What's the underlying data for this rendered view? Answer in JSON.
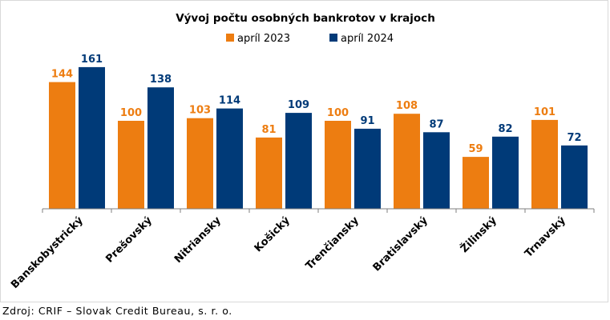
{
  "chart_data": {
    "type": "bar",
    "title": "Vývoj počtu osobných bankrotov v krajoch",
    "xlabel": "",
    "ylabel": "",
    "ylim": [
      0,
      175
    ],
    "grid": false,
    "legend_position": "top-center",
    "categories": [
      "Banskobystrický",
      "Prešovský",
      "Nitriansky",
      "Košický",
      "Trenčiansky",
      "Bratislavský",
      "Žilinský",
      "Trnavský"
    ],
    "series": [
      {
        "name": "apríl 2023",
        "color": "#ED7D11",
        "values": [
          144,
          100,
          103,
          81,
          100,
          108,
          59,
          101
        ]
      },
      {
        "name": "apríl 2024",
        "color": "#003A78",
        "values": [
          161,
          138,
          114,
          109,
          91,
          87,
          82,
          72
        ]
      }
    ]
  },
  "footer": {
    "source": "Zdroj: CRIF – Slovak Credit Bureau, s. r. o."
  }
}
